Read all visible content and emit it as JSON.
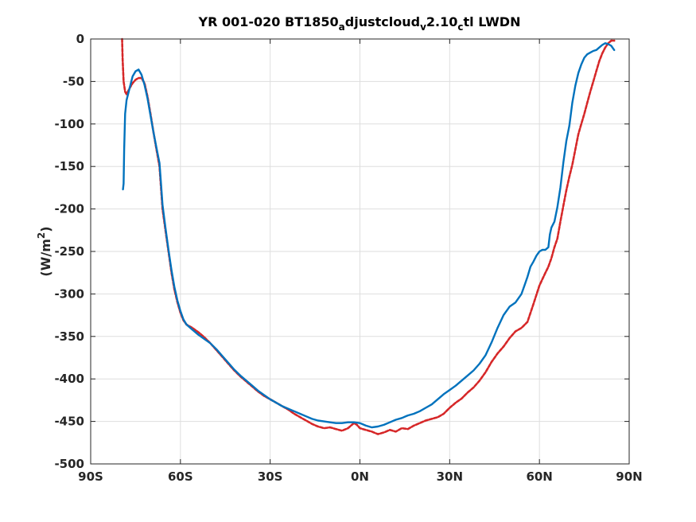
{
  "chart_data": {
    "type": "line",
    "title": {
      "parts": [
        {
          "text": "YR 001-020 BT1850",
          "sub": false
        },
        {
          "text": "a",
          "sub": true
        },
        {
          "text": "djustcloud",
          "sub": false
        },
        {
          "text": "v",
          "sub": true
        },
        {
          "text": "2.10",
          "sub": false
        },
        {
          "text": "c",
          "sub": true
        },
        {
          "text": "tl LWDN",
          "sub": false
        }
      ]
    },
    "ylabel": {
      "base": "(W/m",
      "sup": "2",
      "close": ")"
    },
    "xlim": [
      -90,
      90
    ],
    "ylim": [
      -500,
      0
    ],
    "grid": true,
    "xticks": [
      {
        "value": -90,
        "label": "90S"
      },
      {
        "value": -60,
        "label": "60S"
      },
      {
        "value": -30,
        "label": "30S"
      },
      {
        "value": 0,
        "label": "0N"
      },
      {
        "value": 30,
        "label": "30N"
      },
      {
        "value": 60,
        "label": "60N"
      },
      {
        "value": 90,
        "label": "90N"
      }
    ],
    "yticks": [
      {
        "value": 0,
        "label": "0"
      },
      {
        "value": -50,
        "label": "-50"
      },
      {
        "value": -100,
        "label": "-100"
      },
      {
        "value": -150,
        "label": "-150"
      },
      {
        "value": -200,
        "label": "-200"
      },
      {
        "value": -250,
        "label": "-250"
      },
      {
        "value": -300,
        "label": "-300"
      },
      {
        "value": -350,
        "label": "-350"
      },
      {
        "value": -400,
        "label": "-400"
      },
      {
        "value": -450,
        "label": "-450"
      },
      {
        "value": -500,
        "label": "-500"
      }
    ],
    "series": [
      {
        "color": "#d62728",
        "style": "dashed",
        "points": [
          [
            -79.5,
            0
          ],
          [
            -79.3,
            -25
          ],
          [
            -79.0,
            -50
          ],
          [
            -78.5,
            -62
          ],
          [
            -78.0,
            -65
          ],
          [
            -77.0,
            -58
          ],
          [
            -76.0,
            -52
          ],
          [
            -75.0,
            -48
          ],
          [
            -74.0,
            -46
          ],
          [
            -73.0,
            -46
          ],
          [
            -72.0,
            -52
          ],
          [
            -71.0,
            -68
          ],
          [
            -70.0,
            -88
          ],
          [
            -69.0,
            -110
          ],
          [
            -68.0,
            -130
          ],
          [
            -67.0,
            -150
          ],
          [
            -66.5,
            -175
          ],
          [
            -66.0,
            -200
          ],
          [
            -65.0,
            -225
          ],
          [
            -64.0,
            -250
          ],
          [
            -63.0,
            -275
          ],
          [
            -62.0,
            -295
          ],
          [
            -61.0,
            -310
          ],
          [
            -60.0,
            -322
          ],
          [
            -59.0,
            -331
          ],
          [
            -58.0,
            -336
          ],
          [
            -56.0,
            -340
          ],
          [
            -54.0,
            -345
          ],
          [
            -52.0,
            -351
          ],
          [
            -50.0,
            -358
          ],
          [
            -48.0,
            -366
          ],
          [
            -46.0,
            -374
          ],
          [
            -44.0,
            -382
          ],
          [
            -42.0,
            -390
          ],
          [
            -40.0,
            -397
          ],
          [
            -38.0,
            -403
          ],
          [
            -36.0,
            -409
          ],
          [
            -34.0,
            -415
          ],
          [
            -32.0,
            -420
          ],
          [
            -30.0,
            -424
          ],
          [
            -28.0,
            -428
          ],
          [
            -26.0,
            -432
          ],
          [
            -24.0,
            -436
          ],
          [
            -22.0,
            -441
          ],
          [
            -20.0,
            -445
          ],
          [
            -18.0,
            -449
          ],
          [
            -16.0,
            -453
          ],
          [
            -14.0,
            -456
          ],
          [
            -12.0,
            -458
          ],
          [
            -10.0,
            -457
          ],
          [
            -8.0,
            -459
          ],
          [
            -6.0,
            -461
          ],
          [
            -4.0,
            -458
          ],
          [
            -3.0,
            -455
          ],
          [
            -2.0,
            -452
          ],
          [
            -1.0,
            -454
          ],
          [
            0.0,
            -458
          ],
          [
            2.0,
            -460
          ],
          [
            4.0,
            -462
          ],
          [
            6.0,
            -465
          ],
          [
            8.0,
            -463
          ],
          [
            10.0,
            -460
          ],
          [
            12.0,
            -462
          ],
          [
            14.0,
            -458
          ],
          [
            16.0,
            -459
          ],
          [
            18.0,
            -455
          ],
          [
            20.0,
            -452
          ],
          [
            22.0,
            -449
          ],
          [
            24.0,
            -447
          ],
          [
            26.0,
            -445
          ],
          [
            28.0,
            -441
          ],
          [
            30.0,
            -434
          ],
          [
            32.0,
            -428
          ],
          [
            34.0,
            -423
          ],
          [
            36.0,
            -416
          ],
          [
            38.0,
            -410
          ],
          [
            40.0,
            -402
          ],
          [
            42.0,
            -392
          ],
          [
            44.0,
            -380
          ],
          [
            46.0,
            -370
          ],
          [
            48.0,
            -362
          ],
          [
            50.0,
            -352
          ],
          [
            52.0,
            -344
          ],
          [
            54.0,
            -340
          ],
          [
            56.0,
            -333
          ],
          [
            58.0,
            -312
          ],
          [
            60.0,
            -290
          ],
          [
            62.0,
            -275
          ],
          [
            63.0,
            -268
          ],
          [
            64.0,
            -258
          ],
          [
            65.0,
            -245
          ],
          [
            66.0,
            -235
          ],
          [
            67.0,
            -215
          ],
          [
            68.0,
            -196
          ],
          [
            69.0,
            -178
          ],
          [
            70.0,
            -162
          ],
          [
            71.0,
            -148
          ],
          [
            72.0,
            -130
          ],
          [
            73.0,
            -112
          ],
          [
            74.0,
            -100
          ],
          [
            75.0,
            -88
          ],
          [
            76.0,
            -75
          ],
          [
            77.0,
            -62
          ],
          [
            78.0,
            -50
          ],
          [
            79.0,
            -38
          ],
          [
            80.0,
            -26
          ],
          [
            81.0,
            -17
          ],
          [
            82.0,
            -10
          ],
          [
            83.0,
            -5
          ],
          [
            84.0,
            -2
          ],
          [
            85.0,
            -2
          ]
        ]
      },
      {
        "color": "#0072bd",
        "style": "solid",
        "points": [
          [
            -79.2,
            -177
          ],
          [
            -79.0,
            -170
          ],
          [
            -78.8,
            -130
          ],
          [
            -78.5,
            -88
          ],
          [
            -78.0,
            -72
          ],
          [
            -77.5,
            -65
          ],
          [
            -77.0,
            -58
          ],
          [
            -76.0,
            -44
          ],
          [
            -75.0,
            -38
          ],
          [
            -74.0,
            -36
          ],
          [
            -73.0,
            -42
          ],
          [
            -72.0,
            -54
          ],
          [
            -71.0,
            -70
          ],
          [
            -70.0,
            -90
          ],
          [
            -69.0,
            -110
          ],
          [
            -68.0,
            -128
          ],
          [
            -67.0,
            -146
          ],
          [
            -66.5,
            -170
          ],
          [
            -66.0,
            -195
          ],
          [
            -65.0,
            -222
          ],
          [
            -64.0,
            -248
          ],
          [
            -63.0,
            -272
          ],
          [
            -62.0,
            -292
          ],
          [
            -61.0,
            -308
          ],
          [
            -60.0,
            -320
          ],
          [
            -59.0,
            -330
          ],
          [
            -58.0,
            -336
          ],
          [
            -56.0,
            -342
          ],
          [
            -54.0,
            -348
          ],
          [
            -52.0,
            -353
          ],
          [
            -50.0,
            -358
          ],
          [
            -48.0,
            -365
          ],
          [
            -46.0,
            -373
          ],
          [
            -44.0,
            -381
          ],
          [
            -42.0,
            -389
          ],
          [
            -40.0,
            -396
          ],
          [
            -38.0,
            -402
          ],
          [
            -36.0,
            -408
          ],
          [
            -34.0,
            -414
          ],
          [
            -32.0,
            -419
          ],
          [
            -30.0,
            -424
          ],
          [
            -28.0,
            -428
          ],
          [
            -26.0,
            -432
          ],
          [
            -24.0,
            -435
          ],
          [
            -22.0,
            -438
          ],
          [
            -20.0,
            -441
          ],
          [
            -18.0,
            -444
          ],
          [
            -16.0,
            -447
          ],
          [
            -14.0,
            -449
          ],
          [
            -12.0,
            -450
          ],
          [
            -10.0,
            -451
          ],
          [
            -8.0,
            -452
          ],
          [
            -6.0,
            -452
          ],
          [
            -4.0,
            -451
          ],
          [
            -2.0,
            -451
          ],
          [
            0.0,
            -452
          ],
          [
            2.0,
            -455
          ],
          [
            4.0,
            -457
          ],
          [
            6.0,
            -456
          ],
          [
            8.0,
            -454
          ],
          [
            10.0,
            -451
          ],
          [
            12.0,
            -448
          ],
          [
            14.0,
            -446
          ],
          [
            16.0,
            -443
          ],
          [
            18.0,
            -441
          ],
          [
            20.0,
            -438
          ],
          [
            22.0,
            -434
          ],
          [
            24.0,
            -430
          ],
          [
            26.0,
            -424
          ],
          [
            28.0,
            -418
          ],
          [
            30.0,
            -413
          ],
          [
            32.0,
            -408
          ],
          [
            34.0,
            -402
          ],
          [
            36.0,
            -396
          ],
          [
            38.0,
            -390
          ],
          [
            40.0,
            -382
          ],
          [
            42.0,
            -372
          ],
          [
            44.0,
            -357
          ],
          [
            46.0,
            -340
          ],
          [
            48.0,
            -325
          ],
          [
            50.0,
            -315
          ],
          [
            52.0,
            -310
          ],
          [
            54.0,
            -300
          ],
          [
            55.0,
            -290
          ],
          [
            56.0,
            -280
          ],
          [
            57.0,
            -268
          ],
          [
            58.0,
            -262
          ],
          [
            59.0,
            -255
          ],
          [
            60.0,
            -250
          ],
          [
            61.0,
            -248
          ],
          [
            62.0,
            -248
          ],
          [
            63.0,
            -245
          ],
          [
            63.5,
            -230
          ],
          [
            64.0,
            -222
          ],
          [
            65.0,
            -215
          ],
          [
            66.0,
            -198
          ],
          [
            67.0,
            -175
          ],
          [
            68.0,
            -145
          ],
          [
            69.0,
            -120
          ],
          [
            70.0,
            -102
          ],
          [
            71.0,
            -75
          ],
          [
            72.0,
            -55
          ],
          [
            73.0,
            -40
          ],
          [
            74.0,
            -30
          ],
          [
            75.0,
            -22
          ],
          [
            76.0,
            -18
          ],
          [
            77.0,
            -16
          ],
          [
            78.0,
            -14
          ],
          [
            79.0,
            -13
          ],
          [
            80.0,
            -10
          ],
          [
            81.0,
            -7
          ],
          [
            82.0,
            -5
          ],
          [
            83.0,
            -6
          ],
          [
            84.0,
            -8
          ],
          [
            85.0,
            -13
          ]
        ]
      }
    ]
  }
}
